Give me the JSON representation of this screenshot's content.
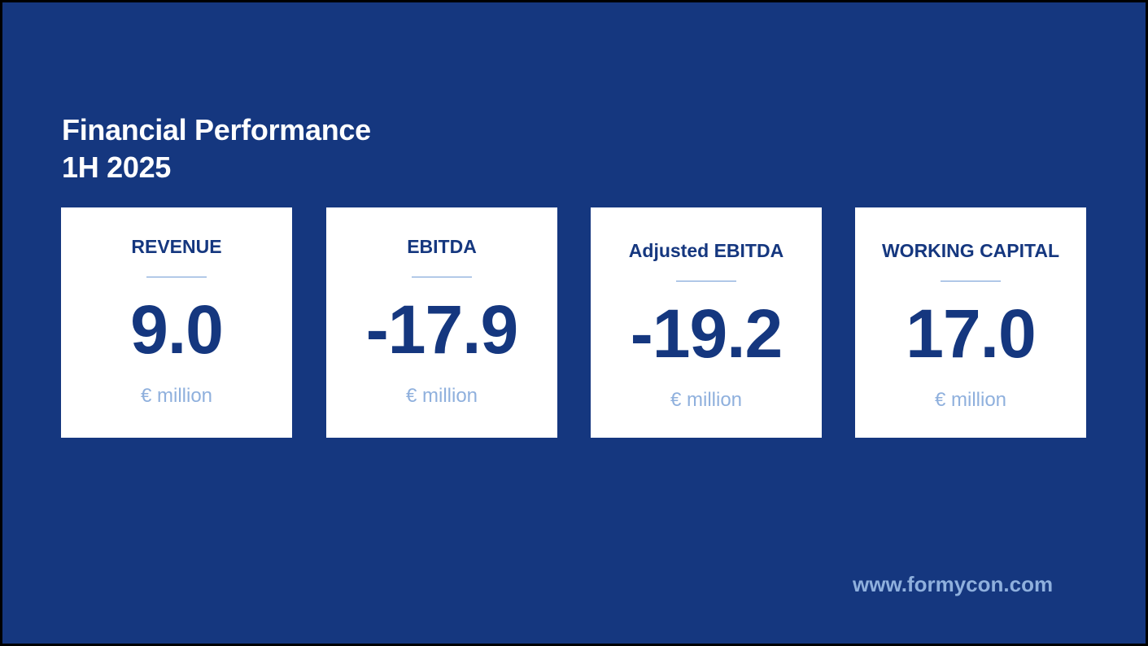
{
  "header": {
    "title_line1": "Financial Performance",
    "title_line2": "1H 2025"
  },
  "kpis": [
    {
      "label": "REVENUE",
      "value": "9.0",
      "unit": "€ million"
    },
    {
      "label": "EBITDA",
      "value": "-17.9",
      "unit": "€ million"
    },
    {
      "label": "Adjusted EBITDA",
      "value": "-19.2",
      "unit": "€ million"
    },
    {
      "label": "WORKING CAPITAL",
      "value": "17.0",
      "unit": "€ million"
    }
  ],
  "footer": {
    "website": "www.formycon.com"
  },
  "colors": {
    "background": "#15377f",
    "card": "#ffffff",
    "value_text": "#15377f",
    "unit_text": "#8fb0dd",
    "divider": "#6f9ad4"
  }
}
